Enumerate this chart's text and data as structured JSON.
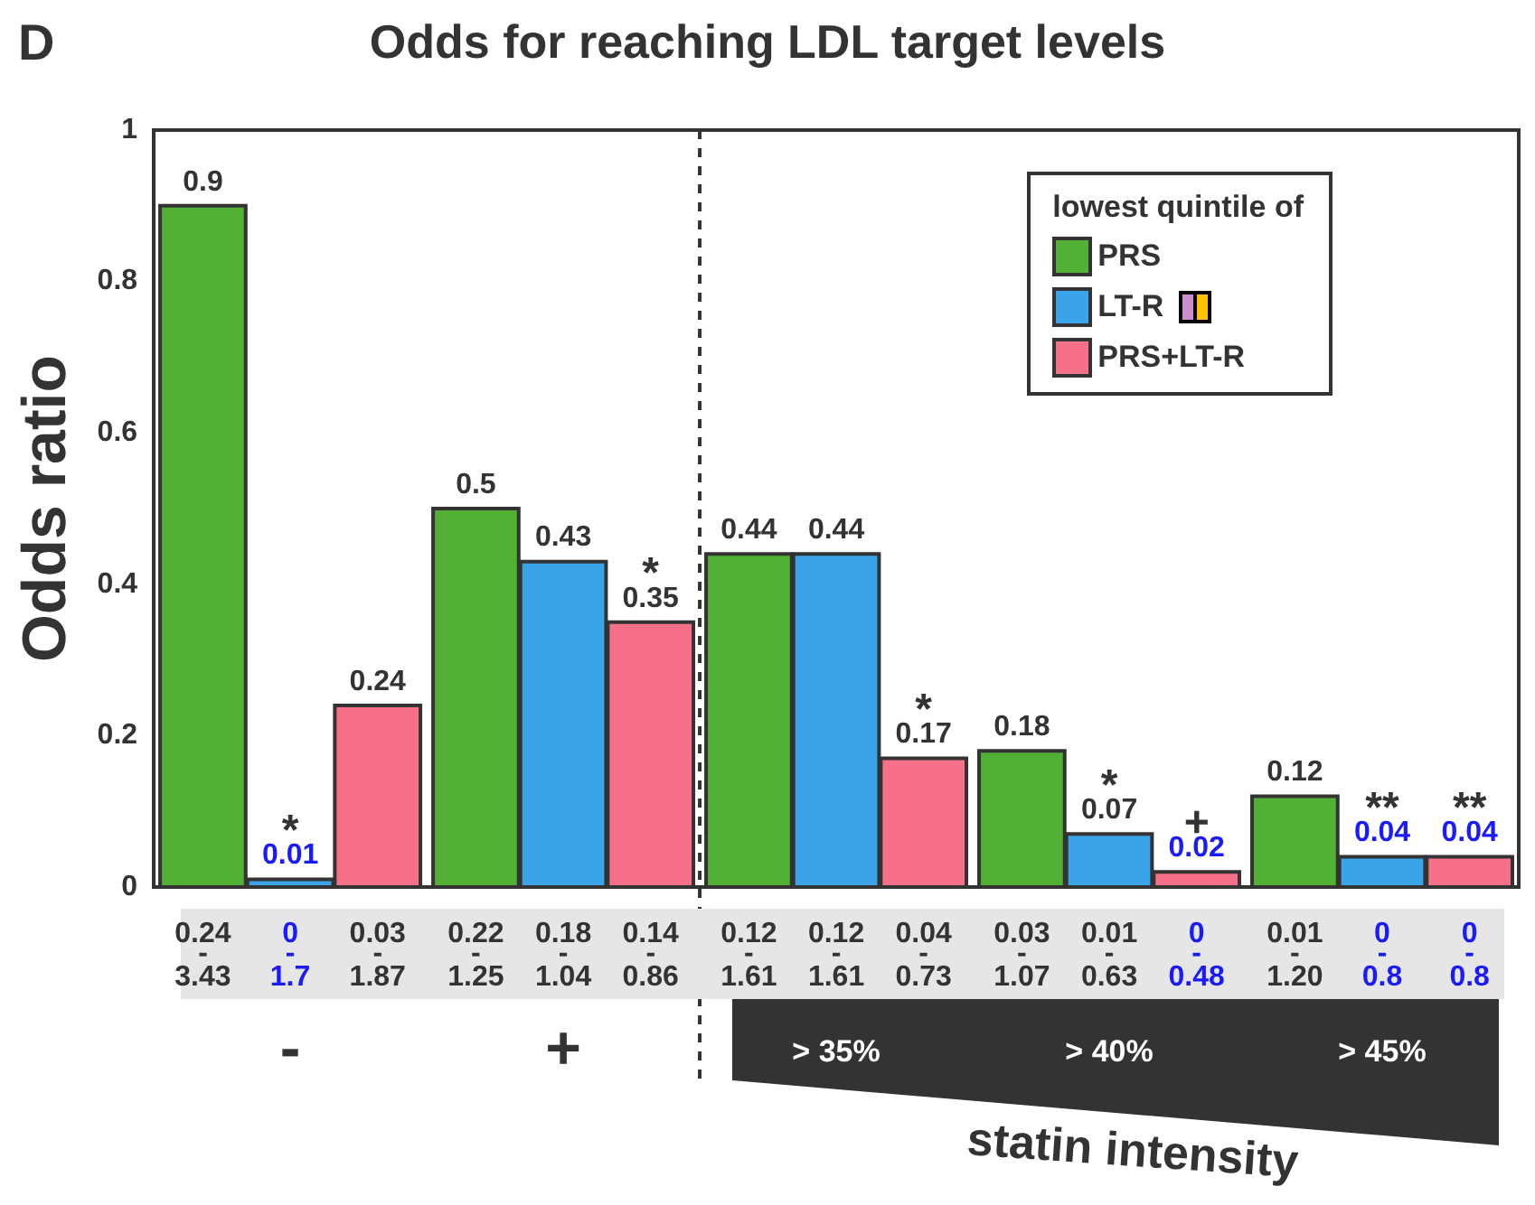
{
  "chart_data": {
    "type": "bar",
    "title": "Odds for reaching LDL target levels",
    "ylabel": "Odds ratio",
    "xlabel": "statin intensity",
    "legend_title": "lowest quintile of",
    "categories": [
      "-",
      "+",
      "> 35%",
      "> 40%",
      "> 45%"
    ],
    "series": [
      {
        "name": "PRS",
        "color": "#52b035",
        "values": [
          0.9,
          0.5,
          0.44,
          0.18,
          0.12
        ]
      },
      {
        "name": "LT-R",
        "color": "#3ba3e8",
        "values": [
          0.01,
          0.43,
          0.44,
          0.07,
          0.04
        ]
      },
      {
        "name": "PRS+LT-R",
        "color": "#f7708a",
        "values": [
          0.24,
          0.35,
          0.17,
          0.02,
          0.04
        ]
      }
    ],
    "ylim": [
      0,
      1
    ],
    "yticks": [
      0,
      0.2,
      0.4,
      0.6,
      0.8,
      1
    ],
    "grid": false,
    "legend": "top right",
    "data_labels": true,
    "annotations": [
      "D",
      "0.24-3.43",
      "0-1.7",
      "0.03-1.87",
      "0.22-1.25",
      "0.18-1.04",
      "0.14-0.86",
      "0.12-1.61",
      "0.12-1.61",
      "0.04-0.73",
      "0.03-1.07",
      "0.01-0.63",
      "0-0.48",
      "0.01-1.20",
      "0-0.8",
      "0-0.8",
      {
        "text": "*",
        "x": "-",
        "y": 0.01
      },
      {
        "text": "*",
        "x": "> 40%",
        "y": 0.07
      },
      {
        "text": "**",
        "x": "> 45%",
        "y": 0.04
      },
      {
        "text": "**",
        "x": "> 45%",
        "y": 0.04
      },
      "*",
      "*",
      "+"
    ]
  }
}
